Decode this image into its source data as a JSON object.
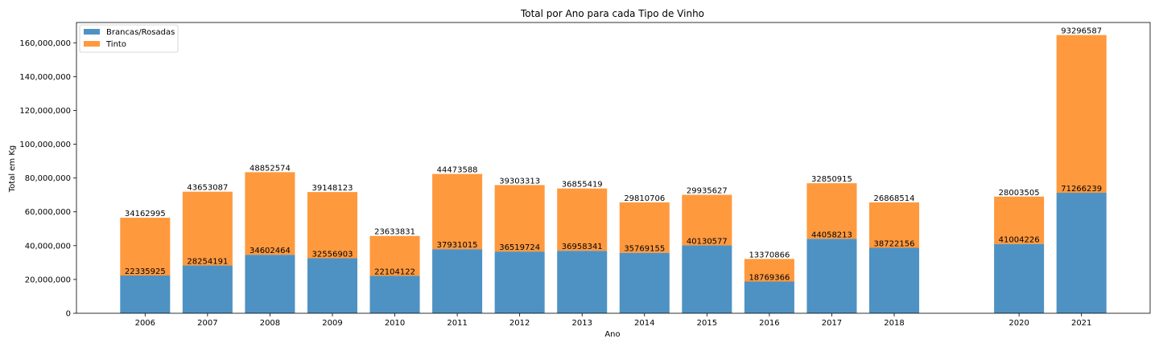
{
  "chart_data": {
    "type": "bar",
    "stacked": true,
    "title": "Total por Ano para cada Tipo de Vinho",
    "xlabel": "Ano",
    "ylabel": "Total em Kg",
    "ylim": [
      0,
      172000000
    ],
    "yticks": [
      0,
      20000000,
      40000000,
      60000000,
      80000000,
      100000000,
      120000000,
      140000000,
      160000000
    ],
    "ytick_labels": [
      "0",
      "20,000,000",
      "40,000,000",
      "60,000,000",
      "80,000,000",
      "100,000,000",
      "120,000,000",
      "140,000,000",
      "160,000,000"
    ],
    "xlim": [
      2004.9,
      2022.1
    ],
    "categories": [
      "2006",
      "2007",
      "2008",
      "2009",
      "2010",
      "2011",
      "2012",
      "2013",
      "2014",
      "2015",
      "2016",
      "2017",
      "2018",
      "2020",
      "2021"
    ],
    "x": [
      2006,
      2007,
      2008,
      2009,
      2010,
      2011,
      2012,
      2013,
      2014,
      2015,
      2016,
      2017,
      2018,
      2020,
      2021
    ],
    "bar_width_years": 0.8,
    "legend_position": "top-left",
    "grid": false,
    "series": [
      {
        "name": "Brancas/Rosadas",
        "color": "#4e92c3",
        "values": [
          22335925,
          28254191,
          34602464,
          32556903,
          22104122,
          37931015,
          36519724,
          36958341,
          35769155,
          40130577,
          18769366,
          44058213,
          38722156,
          41004226,
          71266239
        ]
      },
      {
        "name": "Tinto",
        "color": "#ff993e",
        "values": [
          34162995,
          43653087,
          48852574,
          39148123,
          23633831,
          44473588,
          39303313,
          36855419,
          29810706,
          29935627,
          13370866,
          32850915,
          26868514,
          28003505,
          93296587
        ]
      }
    ]
  }
}
